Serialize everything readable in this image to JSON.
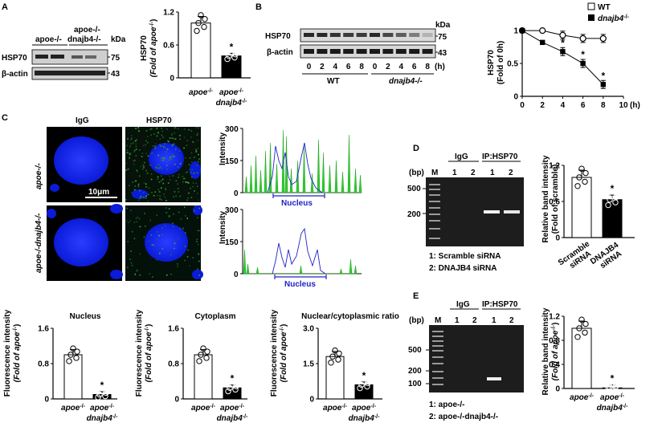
{
  "panel_letters": [
    "A",
    "B",
    "C",
    "D",
    "E"
  ],
  "panelA": {
    "lane_group_1": "apoe-/-",
    "lane_group_2_top": "apoe-/-",
    "lane_group_2_bottom": "dnajb4-/-",
    "kda": "kDa",
    "row1": "HSP70",
    "row1_kda": "75",
    "row2": "β-actin",
    "row2_kda": "43"
  },
  "panelB": {
    "kda": "kDa",
    "row1": "HSP70",
    "row1_kda": "75",
    "row2": "β-actin",
    "row2_kda": "43",
    "time_ticks": [
      "0",
      "2",
      "4",
      "6",
      "8",
      "0",
      "2",
      "4",
      "6",
      "8"
    ],
    "time_unit": "(h)",
    "group1": "WT",
    "group2": "dnajb4-/-"
  },
  "panelC": {
    "col1": "IgG",
    "col2": "HSP70",
    "row1": "apoe-/-",
    "row2": "apoe-/-dnajb4-/-",
    "scale_bar": "10μm",
    "profile_ylabel": "Intensity",
    "profile_yticks": [
      "0",
      "150",
      "300"
    ],
    "nucleus_label": "Nucleus"
  },
  "panelD": {
    "bp": "(bp)",
    "marker": "M",
    "ladder": [
      "500",
      "200"
    ],
    "igg": "IgG",
    "ip": "IP:HSP70",
    "lanes": [
      "1",
      "2",
      "1",
      "2"
    ],
    "legend1": "1: Scramble siRNA",
    "legend2": "2: DNAJB4 siRNA"
  },
  "panelE": {
    "bp": "(bp)",
    "marker": "M",
    "ladder": [
      "500",
      "200",
      "100"
    ],
    "igg": "IgG",
    "ip": "IP:HSP70",
    "lanes": [
      "1",
      "2",
      "1",
      "2"
    ],
    "legend1": "1: apoe-/-",
    "legend2": "2: apoe-/-dnajb4-/-"
  },
  "chart_data": [
    {
      "id": "A",
      "type": "bar",
      "categories": [
        "apoe-/-",
        "apoe-/-dnajb4-/-"
      ],
      "values": [
        1.0,
        0.4
      ],
      "ylabel": "HSP70 (Fold of apoe-/-)",
      "yticks": [
        "0",
        "0.6",
        "1.2"
      ],
      "ylim": [
        0,
        1.2
      ],
      "significance": [
        "",
        "*"
      ]
    },
    {
      "id": "B",
      "type": "line",
      "x": [
        0,
        2,
        4,
        6,
        8
      ],
      "series": [
        {
          "name": "WT",
          "values": [
            1.0,
            1.0,
            0.93,
            0.88,
            0.88
          ]
        },
        {
          "name": "dnajb4-/-",
          "values": [
            1.0,
            0.82,
            0.68,
            0.5,
            0.18
          ]
        }
      ],
      "ylabel": "HSP70 (Fold of 0h)",
      "xlabel": "(h)",
      "xticks": [
        "0",
        "2",
        "4",
        "6",
        "8",
        "10"
      ],
      "yticks": [
        "0",
        "0.5",
        "1"
      ],
      "ylim": [
        0,
        1.05
      ],
      "xlim": [
        0,
        10
      ],
      "significance_x": [
        4,
        6,
        8
      ],
      "legend_position": "top-right"
    },
    {
      "id": "C-nucleus",
      "type": "bar",
      "title": "Nucleus",
      "categories": [
        "apoe-/-",
        "apoe-/-dnajb4-/-"
      ],
      "values": [
        1.0,
        0.1
      ],
      "ylabel": "Fluorescence intensity (Fold of apoe-/-)",
      "yticks": [
        "0",
        "0.8",
        "1.6"
      ],
      "ylim": [
        0,
        1.6
      ],
      "significance": [
        "",
        "*"
      ]
    },
    {
      "id": "C-cytoplasm",
      "type": "bar",
      "title": "Cytoplasm",
      "categories": [
        "apoe-/-",
        "apoe-/-dnajb4-/-"
      ],
      "values": [
        1.0,
        0.25
      ],
      "ylabel": "Fluorescence intensity (Fold of apoe-/-)",
      "yticks": [
        "0",
        "0.8",
        "1.6"
      ],
      "ylim": [
        0,
        1.6
      ],
      "significance": [
        "",
        "*"
      ]
    },
    {
      "id": "C-ratio",
      "type": "bar",
      "title": "Nuclear/cytoplasmic ratio",
      "categories": [
        "apoe-/-",
        "apoe-/-dnajb4-/-"
      ],
      "values": [
        1.8,
        0.6
      ],
      "ylabel": "Fluorescence intensity (Fold of apoe-/-)",
      "yticks": [
        "0",
        "1.5",
        "3.0"
      ],
      "ylim": [
        0,
        3.0
      ],
      "significance": [
        "",
        "*"
      ]
    },
    {
      "id": "D",
      "type": "bar",
      "categories": [
        "Scramble siRNA",
        "DNAJB4 siRNA"
      ],
      "values": [
        1.0,
        0.63
      ],
      "ylabel": "Relative band intensity (Fold of scramble)",
      "yticks": [
        "0",
        "0.6",
        "1.2"
      ],
      "ylim": [
        0,
        1.2
      ],
      "significance": [
        "",
        "*"
      ]
    },
    {
      "id": "E",
      "type": "bar",
      "categories": [
        "apoe-/-",
        "apoe-/-dnajb4-/-"
      ],
      "values": [
        1.0,
        0.01
      ],
      "ylabel": "Relative band intensity (Fold of apoe-/-)",
      "yticks": [
        "0",
        "0.4",
        "0.8",
        "1.2"
      ],
      "ylim": [
        0,
        1.2
      ],
      "significance": [
        "",
        "*"
      ]
    }
  ]
}
